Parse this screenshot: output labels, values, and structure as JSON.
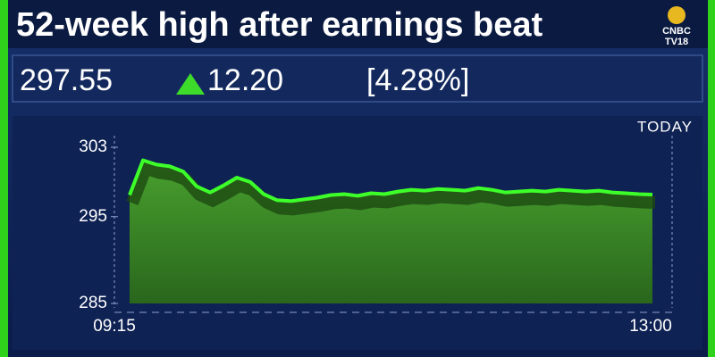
{
  "header": {
    "title": "52-week high after earnings beat",
    "logo": [
      "CNBC",
      "TV18"
    ]
  },
  "quote": {
    "price": "297.55",
    "change": "12.20",
    "percent": "[4.28%]"
  },
  "chart_data": {
    "type": "area",
    "label": "TODAY",
    "color": "#3dff2a",
    "categories": [
      "09:15",
      null,
      null,
      null,
      null,
      null,
      null,
      null,
      null,
      null,
      null,
      null,
      null,
      null,
      null,
      null,
      null,
      null,
      null,
      null,
      null,
      null,
      null,
      null,
      null,
      null,
      null,
      null,
      null,
      null,
      null,
      null,
      null,
      null,
      null,
      null,
      null,
      null,
      null,
      "13:00"
    ],
    "values": [
      297.5,
      301.5,
      301.0,
      300.8,
      300.2,
      298.5,
      297.8,
      298.6,
      299.5,
      299.0,
      297.6,
      296.9,
      296.8,
      297.0,
      297.2,
      297.5,
      297.6,
      297.4,
      297.7,
      297.6,
      297.9,
      298.1,
      298.0,
      298.2,
      298.1,
      298.0,
      298.3,
      298.1,
      297.8,
      297.9,
      298.0,
      297.9,
      298.1,
      298.0,
      297.9,
      298.0,
      297.8,
      297.7,
      297.6,
      297.55
    ],
    "ylim": [
      285,
      303
    ],
    "yticks": [
      285,
      295,
      303
    ]
  }
}
